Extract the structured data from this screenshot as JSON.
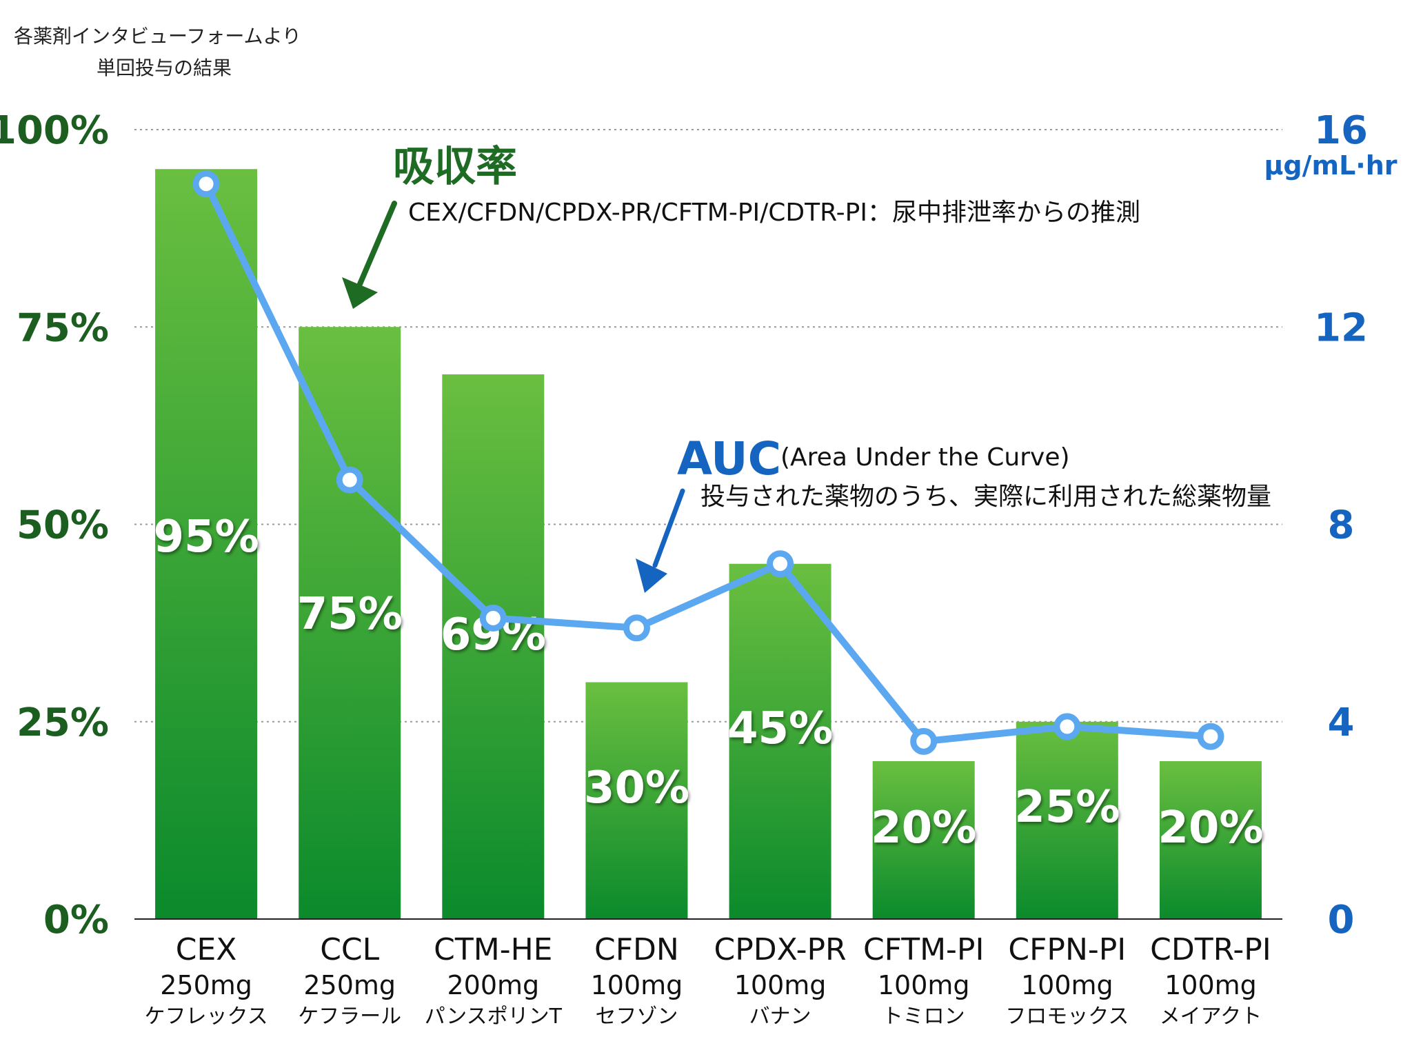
{
  "source_note": {
    "line1": "各薬剤インタビューフォームより",
    "line2": "単回投与の結果"
  },
  "colors": {
    "left_axis": "#1b5e20",
    "right_axis": "#1565c0",
    "bar_top": "#6abf40",
    "bar_bottom": "#0b8a2c",
    "line": "#5ba8f0",
    "absorption_label": "#1e6b24",
    "auc_label": "#1565c0"
  },
  "annotations": {
    "absorption_title": "吸収率",
    "absorption_note": "CEX/CFDN/CPDX-PR/CFTM-PI/CDTR-PI：尿中排泄率からの推測",
    "auc_title": "AUC",
    "auc_sub": "(Area Under the Curve)",
    "auc_note": "投与された薬物のうち、実際に利用された総薬物量"
  },
  "chart_data": {
    "type": "bar",
    "categories": [
      "CEX",
      "CCL",
      "CTM-HE",
      "CFDN",
      "CPDX-PR",
      "CFTM-PI",
      "CFPN-PI",
      "CDTR-PI"
    ],
    "doses": [
      "250mg",
      "250mg",
      "200mg",
      "100mg",
      "100mg",
      "100mg",
      "100mg",
      "100mg"
    ],
    "brand_names": [
      "ケフレックス",
      "ケフラール",
      "パンスポリンT",
      "セフゾン",
      "バナン",
      "トミロン",
      "フロモックス",
      "メイアクト"
    ],
    "series": [
      {
        "name": "吸収率",
        "type": "bar",
        "axis": "left",
        "values": [
          95,
          75,
          69,
          30,
          45,
          20,
          25,
          20
        ],
        "labels": [
          "95%",
          "75%",
          "69%",
          "30%",
          "45%",
          "20%",
          "25%",
          "20%"
        ]
      },
      {
        "name": "AUC",
        "type": "line",
        "axis": "right",
        "values": [
          14.9,
          8.9,
          6.1,
          5.9,
          7.2,
          3.6,
          3.9,
          3.7
        ]
      }
    ],
    "y_left": {
      "ylim": [
        0,
        100
      ],
      "ticks": [
        "0%",
        "25%",
        "50%",
        "75%",
        "100%"
      ],
      "tick_values": [
        0,
        25,
        50,
        75,
        100
      ]
    },
    "y_right": {
      "ylim": [
        0,
        16
      ],
      "ticks": [
        "0",
        "4",
        "8",
        "12",
        "16"
      ],
      "tick_values": [
        0,
        4,
        8,
        12,
        16
      ],
      "unit": "μg/mL·hr"
    },
    "grid": true
  }
}
